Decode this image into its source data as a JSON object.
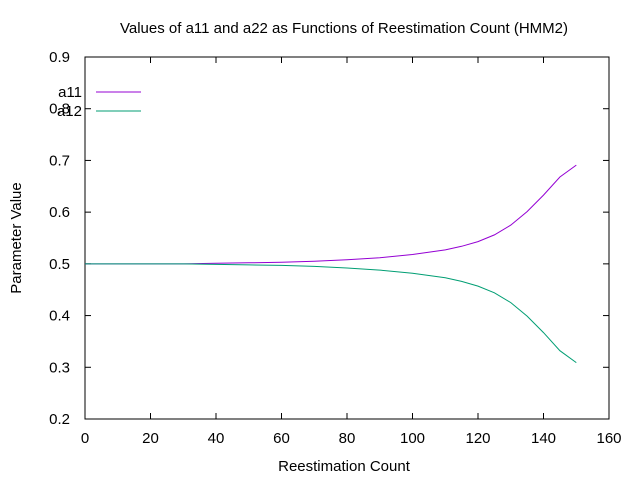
{
  "chart_data": {
    "type": "line",
    "title": "Values of a11 and a22 as Functions of Reestimation Count (HMM2)",
    "xlabel": "Reestimation Count",
    "ylabel": "Parameter Value",
    "xlim": [
      0,
      160
    ],
    "ylim": [
      0.2,
      0.9
    ],
    "xticks": [
      0,
      20,
      40,
      60,
      80,
      100,
      120,
      140,
      160
    ],
    "yticks": [
      0.2,
      0.3,
      0.4,
      0.5,
      0.6,
      0.7,
      0.8,
      0.9
    ],
    "xtick_labels": [
      "0",
      "20",
      "40",
      "60",
      "80",
      "100",
      "120",
      "140",
      "160"
    ],
    "ytick_labels": [
      "0.2",
      "0.3",
      "0.4",
      "0.5",
      "0.6",
      "0.7",
      "0.8",
      "0.9"
    ],
    "grid": false,
    "legend_position": "top-left",
    "series": [
      {
        "name": "a11",
        "color": "#9400d3",
        "x": [
          0,
          10,
          20,
          30,
          40,
          50,
          60,
          70,
          80,
          90,
          100,
          110,
          115,
          120,
          125,
          130,
          135,
          140,
          145,
          150
        ],
        "y": [
          0.5,
          0.5,
          0.5,
          0.5,
          0.501,
          0.502,
          0.503,
          0.505,
          0.508,
          0.512,
          0.518,
          0.527,
          0.534,
          0.543,
          0.556,
          0.575,
          0.601,
          0.633,
          0.668,
          0.691
        ]
      },
      {
        "name": "a12",
        "color": "#009e73",
        "x": [
          0,
          10,
          20,
          30,
          40,
          50,
          60,
          70,
          80,
          90,
          100,
          110,
          115,
          120,
          125,
          130,
          135,
          140,
          145,
          150
        ],
        "y": [
          0.5,
          0.5,
          0.5,
          0.5,
          0.499,
          0.498,
          0.497,
          0.495,
          0.492,
          0.488,
          0.482,
          0.473,
          0.466,
          0.457,
          0.444,
          0.425,
          0.399,
          0.367,
          0.332,
          0.309
        ]
      }
    ]
  }
}
